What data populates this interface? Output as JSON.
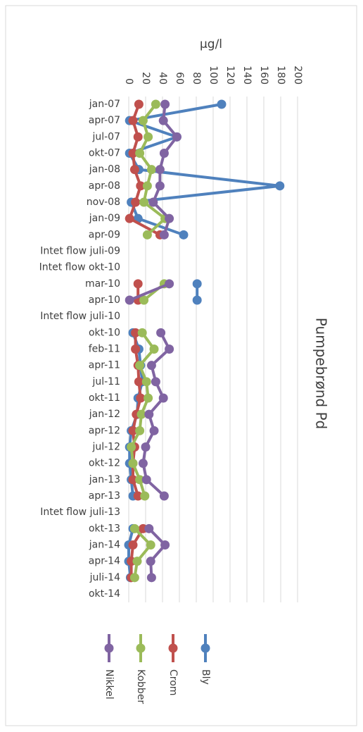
{
  "chart_data": {
    "type": "line",
    "title": "Pumpebrønd Pd",
    "y_label": "µg/l",
    "categories": [
      "jan-07",
      "apr-07",
      "jul-07",
      "okt-07",
      "jan-08",
      "apr-08",
      "nov-08",
      "jan-09",
      "apr-09",
      "Intet flow juli-09",
      "Intet flow okt-10",
      "mar-10",
      "apr-10",
      "Intet flow juli-10",
      "okt-10",
      "feb-11",
      "apr-11",
      "jul-11",
      "okt-11",
      "jan-12",
      "apr-12",
      "jul-12",
      "okt-12",
      "jan-13",
      "apr-13",
      "Intet flow juli-13",
      "okt-13",
      "jan-14",
      "apr-14",
      "juli-14",
      "okt-14"
    ],
    "ylim": [
      0,
      200
    ],
    "yticks": [
      0,
      20,
      40,
      60,
      80,
      100,
      120,
      140,
      160,
      180,
      200
    ],
    "grid": true,
    "series": [
      {
        "name": "Bly",
        "color": "#4f81bd",
        "values": [
          110,
          1,
          57,
          1,
          12,
          179,
          3,
          11,
          65,
          null,
          null,
          81,
          81,
          null,
          5,
          12,
          14,
          16,
          11,
          10,
          3,
          1,
          1,
          3,
          5,
          null,
          5,
          0,
          0,
          2,
          null
        ]
      },
      {
        "name": "Crom",
        "color": "#c0504d",
        "values": [
          12,
          5,
          11,
          5,
          7,
          14,
          8,
          1,
          37,
          null,
          null,
          11,
          11,
          null,
          8,
          8,
          11,
          12,
          14,
          9,
          5,
          7,
          5,
          5,
          11,
          null,
          17,
          5,
          3,
          3,
          null
        ]
      },
      {
        "name": "Kobber",
        "color": "#9bbb59",
        "values": [
          32,
          17,
          23,
          13,
          27,
          22,
          18,
          43,
          22,
          null,
          null,
          42,
          18,
          null,
          16,
          30,
          13,
          21,
          23,
          15,
          13,
          3,
          5,
          13,
          19,
          null,
          7,
          26,
          10,
          7,
          null
        ]
      },
      {
        "name": "Nikkel",
        "color": "#8064a2",
        "values": [
          43,
          41,
          57,
          42,
          37,
          37,
          29,
          48,
          42,
          null,
          null,
          48,
          1,
          null,
          38,
          48,
          27,
          32,
          41,
          24,
          30,
          20,
          17,
          21,
          42,
          null,
          24,
          43,
          26,
          27,
          null
        ]
      }
    ]
  }
}
